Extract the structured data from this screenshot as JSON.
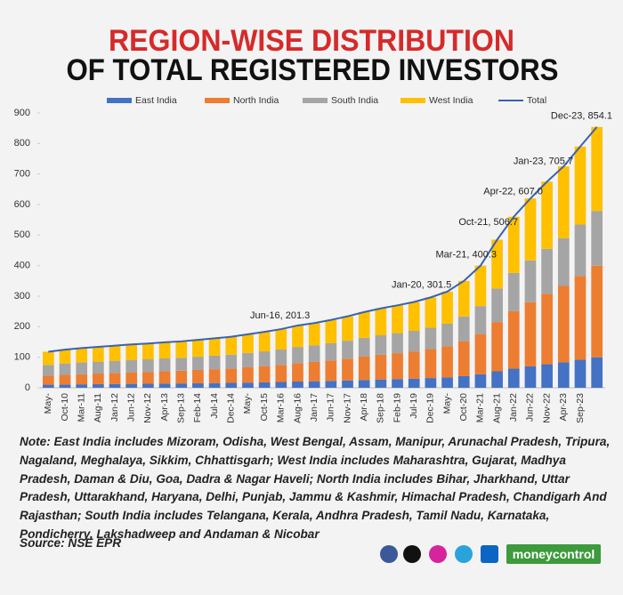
{
  "chart_data": {
    "type": "bar",
    "stacked": true,
    "title": "REGION-WISE DISTRIBUTION",
    "subtitle": "OF TOTAL REGISTERED INVESTORS",
    "categories": [
      "May-",
      "Oct-10",
      "Mar-11",
      "Aug-11",
      "Jan-12",
      "Jun-12",
      "Nov-12",
      "Apr-13",
      "Sep-13",
      "Feb-14",
      "Jul-14",
      "Dec-14",
      "May-",
      "Oct-15",
      "Mar-16",
      "Aug-16",
      "Jan-17",
      "Jun-17",
      "Nov-17",
      "Apr-18",
      "Sep-18",
      "Feb-19",
      "Jul-19",
      "Dec-19",
      "May-",
      "Oct-20",
      "Mar-21",
      "Aug-21",
      "Jan-22",
      "Jun-22",
      "Nov-22",
      "Apr-23",
      "Sep-23",
      null
    ],
    "series": [
      {
        "name": "East India",
        "color": "#4472c4",
        "values": [
          10.0,
          10.8,
          11.3,
          11.8,
          12.3,
          12.8,
          13.2,
          13.7,
          14.1,
          14.7,
          15.3,
          16.0,
          16.9,
          17.9,
          18.9,
          20.3,
          21.3,
          22.5,
          24.0,
          25.6,
          27.1,
          28.5,
          29.9,
          31.8,
          34.1,
          38.2,
          44.1,
          53.9,
          62.8,
          70.1,
          77.0,
          83.4,
          91.6,
          99.9
        ]
      },
      {
        "name": "North India",
        "color": "#ed7d31",
        "values": [
          29.5,
          31.6,
          33.3,
          34.7,
          36.2,
          37.7,
          38.9,
          40.4,
          41.7,
          43.6,
          45.5,
          47.4,
          50.2,
          53.0,
          56.2,
          60.4,
          63.4,
          67.0,
          71.4,
          76.4,
          80.9,
          84.9,
          89.2,
          94.8,
          101.9,
          114.3,
          131.8,
          161.3,
          188.0,
          210.1,
          230.7,
          250.1,
          274.8,
          299.8
        ]
      },
      {
        "name": "South India",
        "color": "#a5a5a5",
        "values": [
          35.4,
          37.2,
          38.3,
          39.1,
          39.9,
          40.7,
          41.1,
          41.9,
          42.3,
          43.3,
          44.2,
          45.1,
          46.8,
          48.4,
          50.3,
          52.9,
          54.4,
          56.3,
          58.7,
          61.6,
          63.8,
          65.5,
          67.4,
          70.2,
          73.9,
          81.1,
          91.6,
          109.8,
          125.2,
          137.0,
          147.3,
          156.2,
          168.0,
          179.4
        ]
      },
      {
        "name": "West India",
        "color": "#ffc000",
        "values": [
          43.1,
          45.4,
          47.1,
          48.4,
          49.6,
          50.8,
          51.8,
          53.0,
          53.9,
          55.4,
          57.0,
          58.5,
          61.1,
          63.7,
          66.6,
          70.4,
          72.9,
          76.2,
          79.9,
          84.4,
          88.2,
          91.1,
          94.5,
          99.2,
          105.1,
          116.4,
          132.5,
          160.0,
          184.0,
          202.8,
          220.0,
          235.3,
          255.6,
          275.0
        ]
      },
      {
        "name": "Total",
        "type": "line",
        "color": "#3a62ad",
        "values": [
          118,
          125,
          130,
          134,
          138,
          142,
          145,
          149,
          152,
          157,
          162,
          167,
          175,
          183,
          192,
          204,
          212,
          222,
          234,
          248,
          260,
          270,
          281,
          296,
          315,
          350,
          400,
          485,
          560,
          620,
          675,
          725,
          790,
          854.1
        ]
      }
    ],
    "annotations": [
      {
        "label": "Jun-16, 201.3",
        "value": 201.3
      },
      {
        "label": "Jan-20, 301.5",
        "value": 301.5
      },
      {
        "label": "Mar-21, 400.3",
        "value": 400.3
      },
      {
        "label": "Oct-21, 506.7",
        "value": 506.7
      },
      {
        "label": "Apr-22, 607.0",
        "value": 607.0
      },
      {
        "label": "Jan-23, 705.7",
        "value": 705.7
      },
      {
        "label": "Dec-23, 854.1",
        "value": 854.1
      }
    ],
    "ylim": [
      0,
      900
    ],
    "yticks": [
      0,
      100,
      200,
      300,
      400,
      500,
      600,
      700,
      800,
      900
    ],
    "grid": false,
    "legend": "top"
  },
  "note": "Note: East India includes Mizoram, Odisha, West Bengal, Assam, Manipur, Arunachal Pradesh, Tripura, Nagaland, Meghalaya, Sikkim, Chhattisgarh; West India includes Maharashtra, Gujarat, Madhya Pradesh, Daman & Diu, Goa, Dadra & Nagar Haveli; North India includes Bihar, Jharkhand, Uttar Pradesh, Uttarakhand, Haryana, Delhi, Punjab, Jammu & Kashmir, Himachal Pradesh, Chandigarh And Rajasthan; South India includes Telangana, Kerala, Andhra Pradesh, Tamil Nadu, Karnataka, Pondicherry, Lakshadweep and Andaman & Nicobar",
  "source": "Source: NSE EPR",
  "brand": "moneycontrol"
}
